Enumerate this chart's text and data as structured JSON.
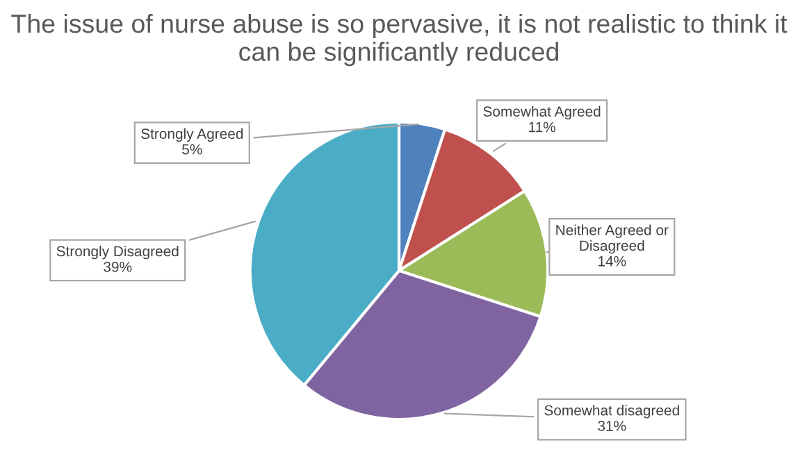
{
  "chart_data": {
    "type": "pie",
    "title": "The issue of nurse abuse is so pervasive, it is not realistic to think it can be significantly reduced",
    "categories": [
      "Strongly Agreed",
      "Somewhat Agreed",
      "Neither Agreed or Disagreed",
      "Somewhat disagreed",
      "Strongly Disagreed"
    ],
    "values": [
      5,
      11,
      14,
      31,
      39
    ],
    "value_labels": [
      "5%",
      "11%",
      "14%",
      "31%",
      "39%"
    ],
    "colors": [
      "#4f81bd",
      "#c0504d",
      "#9bbb59",
      "#8064a2",
      "#4bacc6"
    ],
    "legend": false
  }
}
